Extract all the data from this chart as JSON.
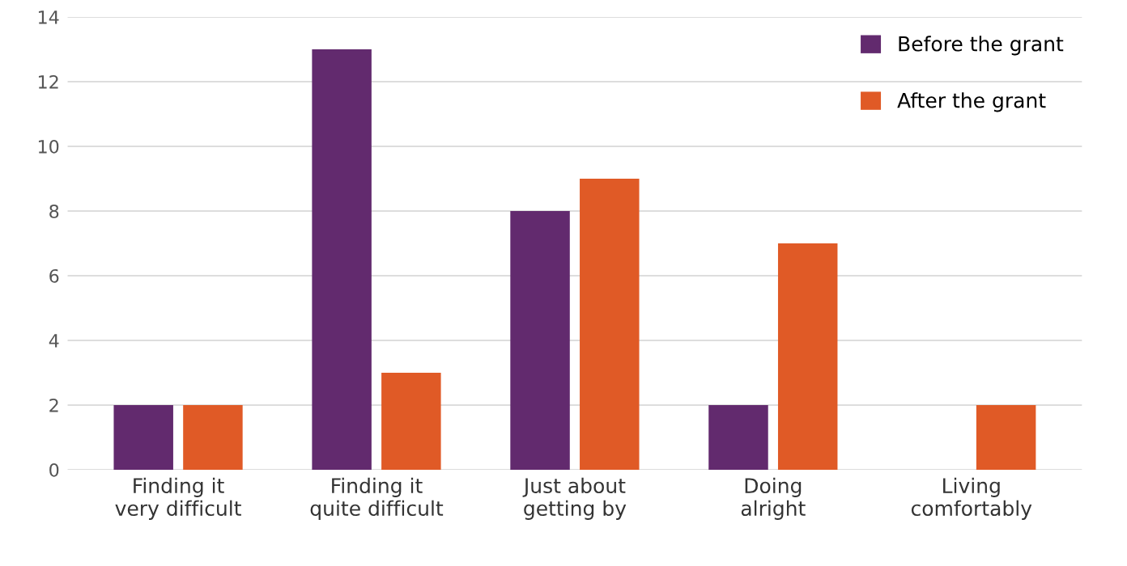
{
  "chart_data": {
    "type": "bar",
    "categories": [
      "Finding it\nvery difficult",
      "Finding it\nquite difficult",
      "Just about\ngetting by",
      "Doing\nalright",
      "Living\ncomfortably"
    ],
    "series": [
      {
        "name": "Before the grant",
        "color": "#622a6e",
        "values": [
          2,
          13,
          8,
          2,
          0
        ]
      },
      {
        "name": "After the grant",
        "color": "#e05a26",
        "values": [
          2,
          3,
          9,
          7,
          2
        ]
      }
    ],
    "ylim": [
      0,
      14
    ],
    "yticks": [
      0,
      2,
      4,
      6,
      8,
      10,
      12,
      14
    ],
    "grid": "y",
    "legend": "top right"
  }
}
